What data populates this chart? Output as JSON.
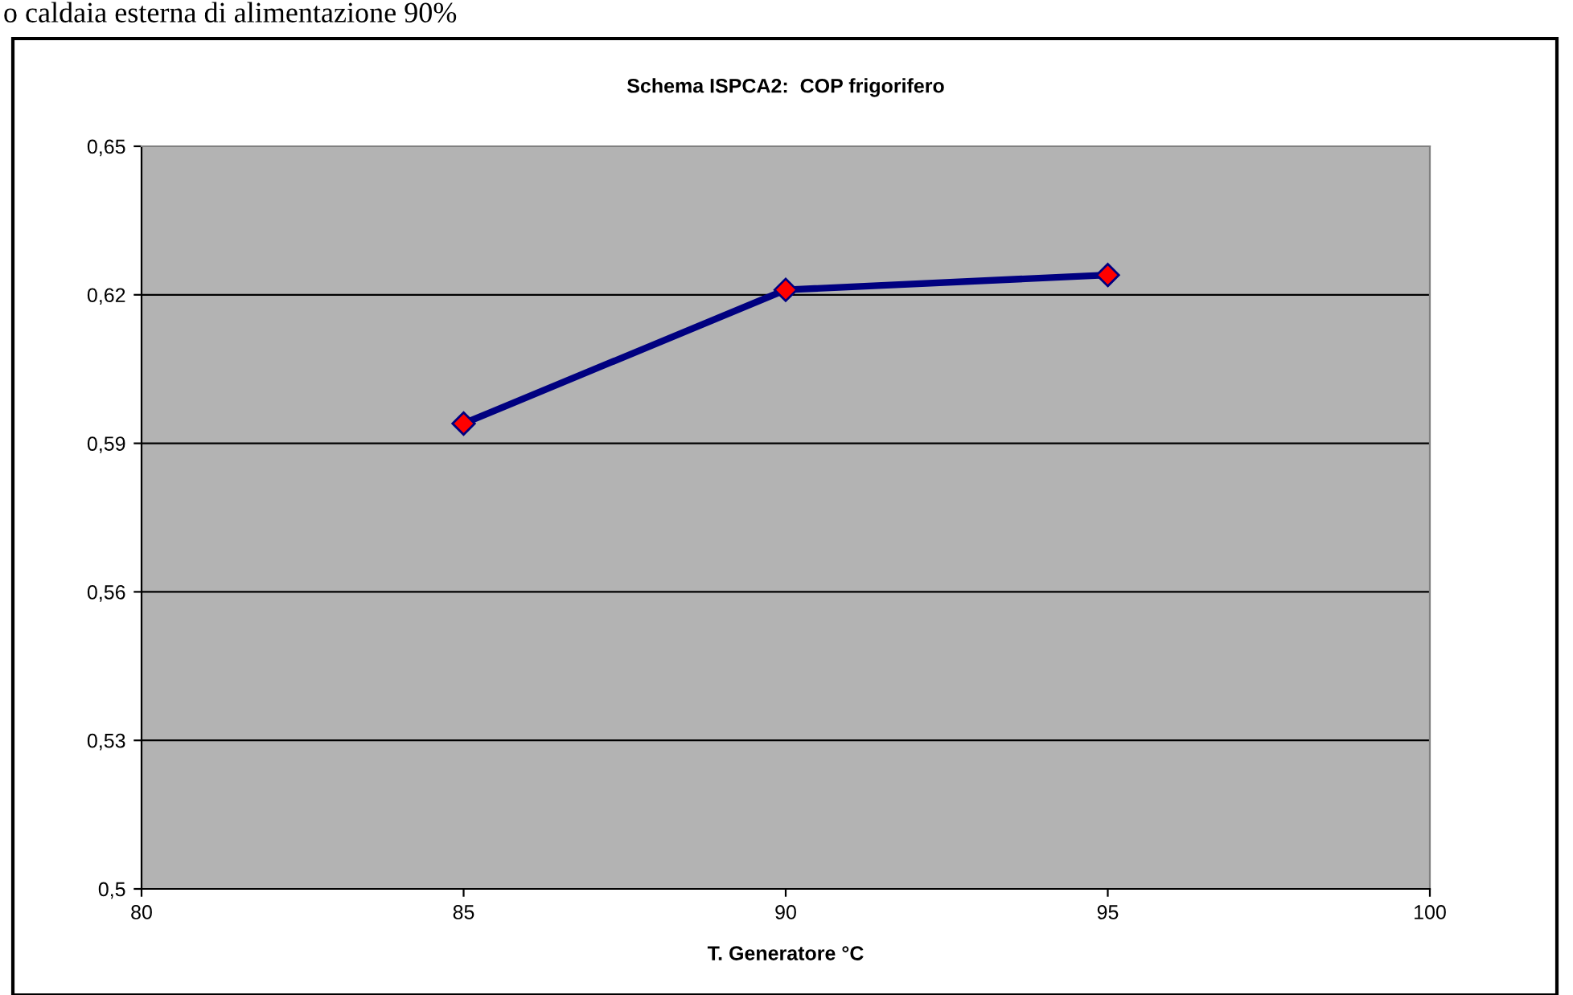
{
  "chart_data": {
    "type": "line",
    "title": "Schema ISPCA2:  COP frigorifero",
    "xlabel": "T. Generatore °C",
    "annotations": [
      "o caldaia esterna di alimentazione 90%"
    ],
    "x": [
      85,
      90,
      95
    ],
    "series": [
      {
        "color": "#000080",
        "values": [
          0.594,
          0.621,
          0.624
        ]
      }
    ],
    "marker": "diamond",
    "line_style": "solid",
    "xlim": [
      80,
      100
    ],
    "xticks": [
      80,
      85,
      90,
      95,
      100
    ],
    "ylim": [
      0.5,
      0.65
    ],
    "yticks": [
      {
        "value": 0.5,
        "label": "0,5"
      },
      {
        "value": 0.53,
        "label": "0,53"
      },
      {
        "value": 0.56,
        "label": "0,56"
      },
      {
        "value": 0.59,
        "label": "0,59"
      },
      {
        "value": 0.62,
        "label": "0,62"
      },
      {
        "value": 0.65,
        "label": "0,65"
      }
    ],
    "grid": "y",
    "legend": false
  }
}
